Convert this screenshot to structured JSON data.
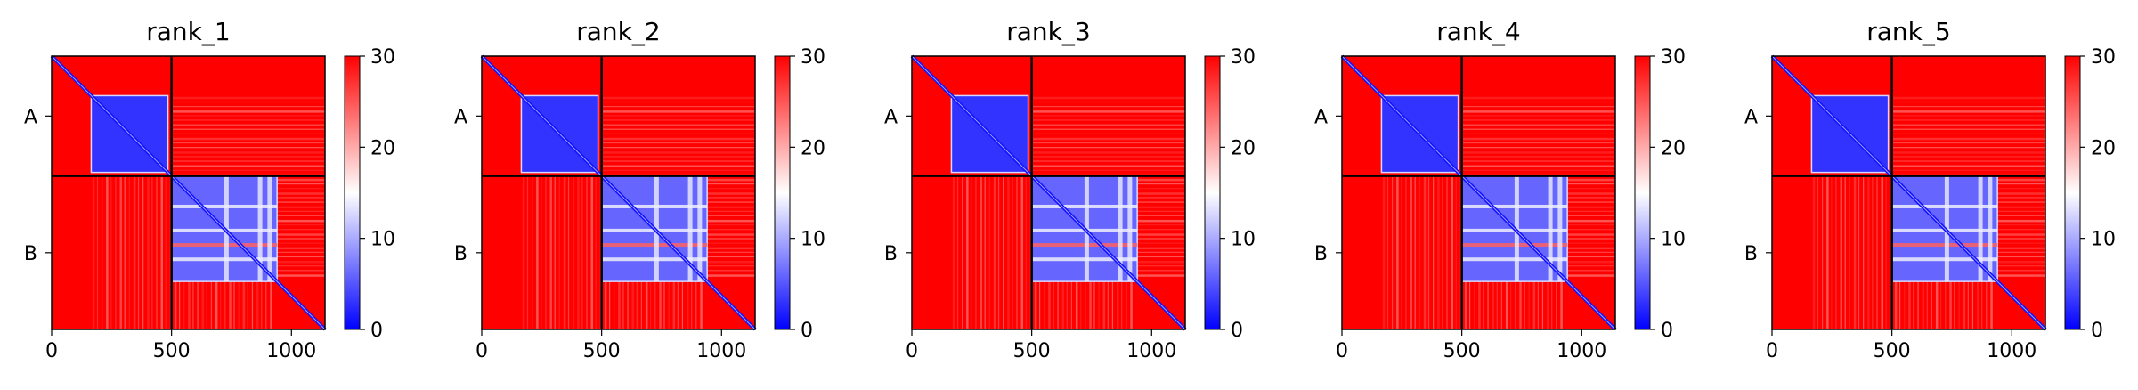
{
  "figure": {
    "background": "#ffffff"
  },
  "chart_data": [
    {
      "type": "heatmap",
      "title": "rank_1",
      "x_ticks": [
        0,
        500,
        1000
      ],
      "x_tick_labels": [
        "0",
        "500",
        "1000"
      ],
      "y_tick_labels": [
        "A",
        "B"
      ],
      "chains": [
        {
          "name": "A",
          "start": 0,
          "end": 500
        },
        {
          "name": "B",
          "start": 500,
          "end": 1140
        }
      ],
      "xlim": [
        0,
        1140
      ],
      "ylim": [
        1140,
        0
      ],
      "colorbar": {
        "min": 0,
        "max": 30,
        "ticks": [
          0,
          10,
          20,
          30
        ],
        "tick_labels": [
          "0",
          "10",
          "20",
          "30"
        ],
        "colors": [
          "#0000ff",
          "#ffffff",
          "#ff0000"
        ]
      },
      "low_error_blocks": [
        {
          "x0": 165,
          "x1": 485,
          "y0": 165,
          "y1": 485,
          "value": 3
        },
        {
          "x0": 500,
          "x1": 940,
          "y0": 500,
          "y1": 940,
          "value": 6
        }
      ],
      "interchain_value": 27,
      "background_value": 30
    },
    {
      "type": "heatmap",
      "title": "rank_2",
      "x_ticks": [
        0,
        500,
        1000
      ],
      "x_tick_labels": [
        "0",
        "500",
        "1000"
      ],
      "y_tick_labels": [
        "A",
        "B"
      ],
      "chains": [
        {
          "name": "A",
          "start": 0,
          "end": 500
        },
        {
          "name": "B",
          "start": 500,
          "end": 1140
        }
      ],
      "xlim": [
        0,
        1140
      ],
      "ylim": [
        1140,
        0
      ],
      "colorbar": {
        "min": 0,
        "max": 30,
        "ticks": [
          0,
          10,
          20,
          30
        ],
        "tick_labels": [
          "0",
          "10",
          "20",
          "30"
        ],
        "colors": [
          "#0000ff",
          "#ffffff",
          "#ff0000"
        ]
      },
      "low_error_blocks": [
        {
          "x0": 165,
          "x1": 485,
          "y0": 165,
          "y1": 485,
          "value": 3
        },
        {
          "x0": 500,
          "x1": 940,
          "y0": 500,
          "y1": 940,
          "value": 6
        }
      ],
      "interchain_value": 27,
      "background_value": 30
    },
    {
      "type": "heatmap",
      "title": "rank_3",
      "x_ticks": [
        0,
        500,
        1000
      ],
      "x_tick_labels": [
        "0",
        "500",
        "1000"
      ],
      "y_tick_labels": [
        "A",
        "B"
      ],
      "chains": [
        {
          "name": "A",
          "start": 0,
          "end": 500
        },
        {
          "name": "B",
          "start": 500,
          "end": 1140
        }
      ],
      "xlim": [
        0,
        1140
      ],
      "ylim": [
        1140,
        0
      ],
      "colorbar": {
        "min": 0,
        "max": 30,
        "ticks": [
          0,
          10,
          20,
          30
        ],
        "tick_labels": [
          "0",
          "10",
          "20",
          "30"
        ],
        "colors": [
          "#0000ff",
          "#ffffff",
          "#ff0000"
        ]
      },
      "low_error_blocks": [
        {
          "x0": 165,
          "x1": 485,
          "y0": 165,
          "y1": 485,
          "value": 3
        },
        {
          "x0": 500,
          "x1": 940,
          "y0": 500,
          "y1": 940,
          "value": 6
        }
      ],
      "interchain_value": 27,
      "background_value": 30
    },
    {
      "type": "heatmap",
      "title": "rank_4",
      "x_ticks": [
        0,
        500,
        1000
      ],
      "x_tick_labels": [
        "0",
        "500",
        "1000"
      ],
      "y_tick_labels": [
        "A",
        "B"
      ],
      "chains": [
        {
          "name": "A",
          "start": 0,
          "end": 500
        },
        {
          "name": "B",
          "start": 500,
          "end": 1140
        }
      ],
      "xlim": [
        0,
        1140
      ],
      "ylim": [
        1140,
        0
      ],
      "colorbar": {
        "min": 0,
        "max": 30,
        "ticks": [
          0,
          10,
          20,
          30
        ],
        "tick_labels": [
          "0",
          "10",
          "20",
          "30"
        ],
        "colors": [
          "#0000ff",
          "#ffffff",
          "#ff0000"
        ]
      },
      "low_error_blocks": [
        {
          "x0": 165,
          "x1": 485,
          "y0": 165,
          "y1": 485,
          "value": 3
        },
        {
          "x0": 500,
          "x1": 940,
          "y0": 500,
          "y1": 940,
          "value": 6
        }
      ],
      "interchain_value": 27,
      "background_value": 30
    },
    {
      "type": "heatmap",
      "title": "rank_5",
      "x_ticks": [
        0,
        500,
        1000
      ],
      "x_tick_labels": [
        "0",
        "500",
        "1000"
      ],
      "y_tick_labels": [
        "A",
        "B"
      ],
      "chains": [
        {
          "name": "A",
          "start": 0,
          "end": 500
        },
        {
          "name": "B",
          "start": 500,
          "end": 1140
        }
      ],
      "xlim": [
        0,
        1140
      ],
      "ylim": [
        1140,
        0
      ],
      "colorbar": {
        "min": 0,
        "max": 30,
        "ticks": [
          0,
          10,
          20,
          30
        ],
        "tick_labels": [
          "0",
          "10",
          "20",
          "30"
        ],
        "colors": [
          "#0000ff",
          "#ffffff",
          "#ff0000"
        ]
      },
      "low_error_blocks": [
        {
          "x0": 165,
          "x1": 485,
          "y0": 165,
          "y1": 485,
          "value": 3
        },
        {
          "x0": 500,
          "x1": 940,
          "y0": 500,
          "y1": 940,
          "value": 6
        }
      ],
      "interchain_value": 27,
      "background_value": 30
    }
  ]
}
